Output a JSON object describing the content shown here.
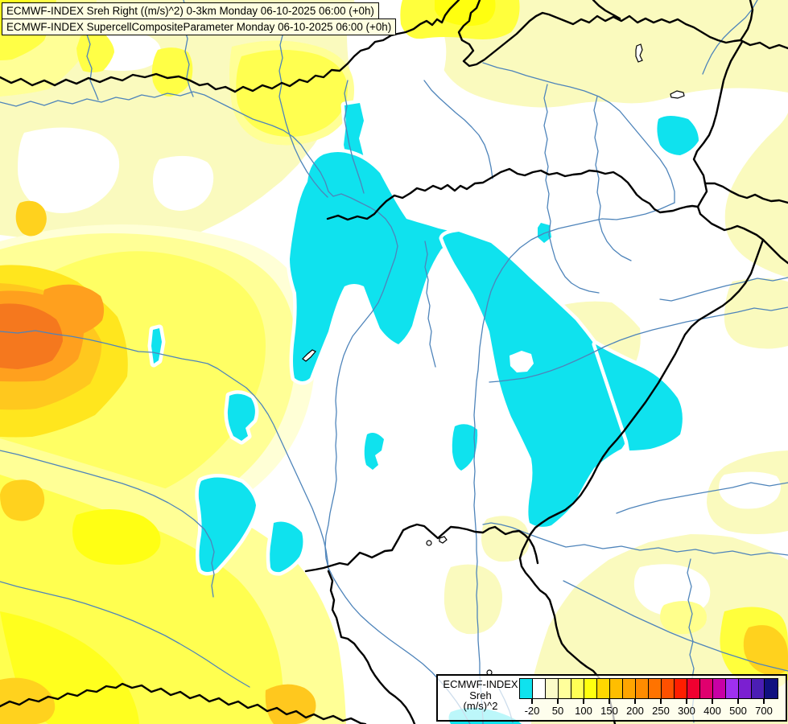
{
  "header": {
    "title_line1": "ECMWF-INDEX Sreh Right ((m/s)^2) 0-3km Monday 06-10-2025 06:00 (+0h)",
    "title_line2": "ECMWF-INDEX SupercellCompositeParameter Monday 06-10-2025 06:00 (+0h)"
  },
  "legend": {
    "model": "ECMWF-INDEX",
    "parameter": "Sreh",
    "units": "(m/s)^2",
    "tick_labels": [
      "-20",
      "50",
      "100",
      "150",
      "200",
      "250",
      "300",
      "400",
      "500",
      "700"
    ],
    "swatch_colors": [
      "#0FE2EE",
      "#FFFFFF",
      "#FBFBC8",
      "#FFFF9B",
      "#FFFF55",
      "#FFFF0F",
      "#FFD700",
      "#FFBE00",
      "#FFA500",
      "#FF8C00",
      "#FF7300",
      "#FF5000",
      "#FF1E00",
      "#F00030",
      "#E0006E",
      "#C800A5",
      "#A030F0",
      "#7B1FD1",
      "#4B1EB4",
      "#101080"
    ]
  },
  "map": {
    "palette": {
      "negative_cyan": "#0FE2EE",
      "neutral_white": "#FFFFFF",
      "pale_yellow": "#FAFABE",
      "light_yellow": "#FFFF96",
      "yellow": "#FFFF50",
      "bright_yellow": "#FFFF14",
      "gold": "#FFC81E",
      "orange": "#FFA01E",
      "deep_orange": "#F5781E",
      "river_blue": "#4E84BA",
      "border_black": "#000000"
    }
  }
}
